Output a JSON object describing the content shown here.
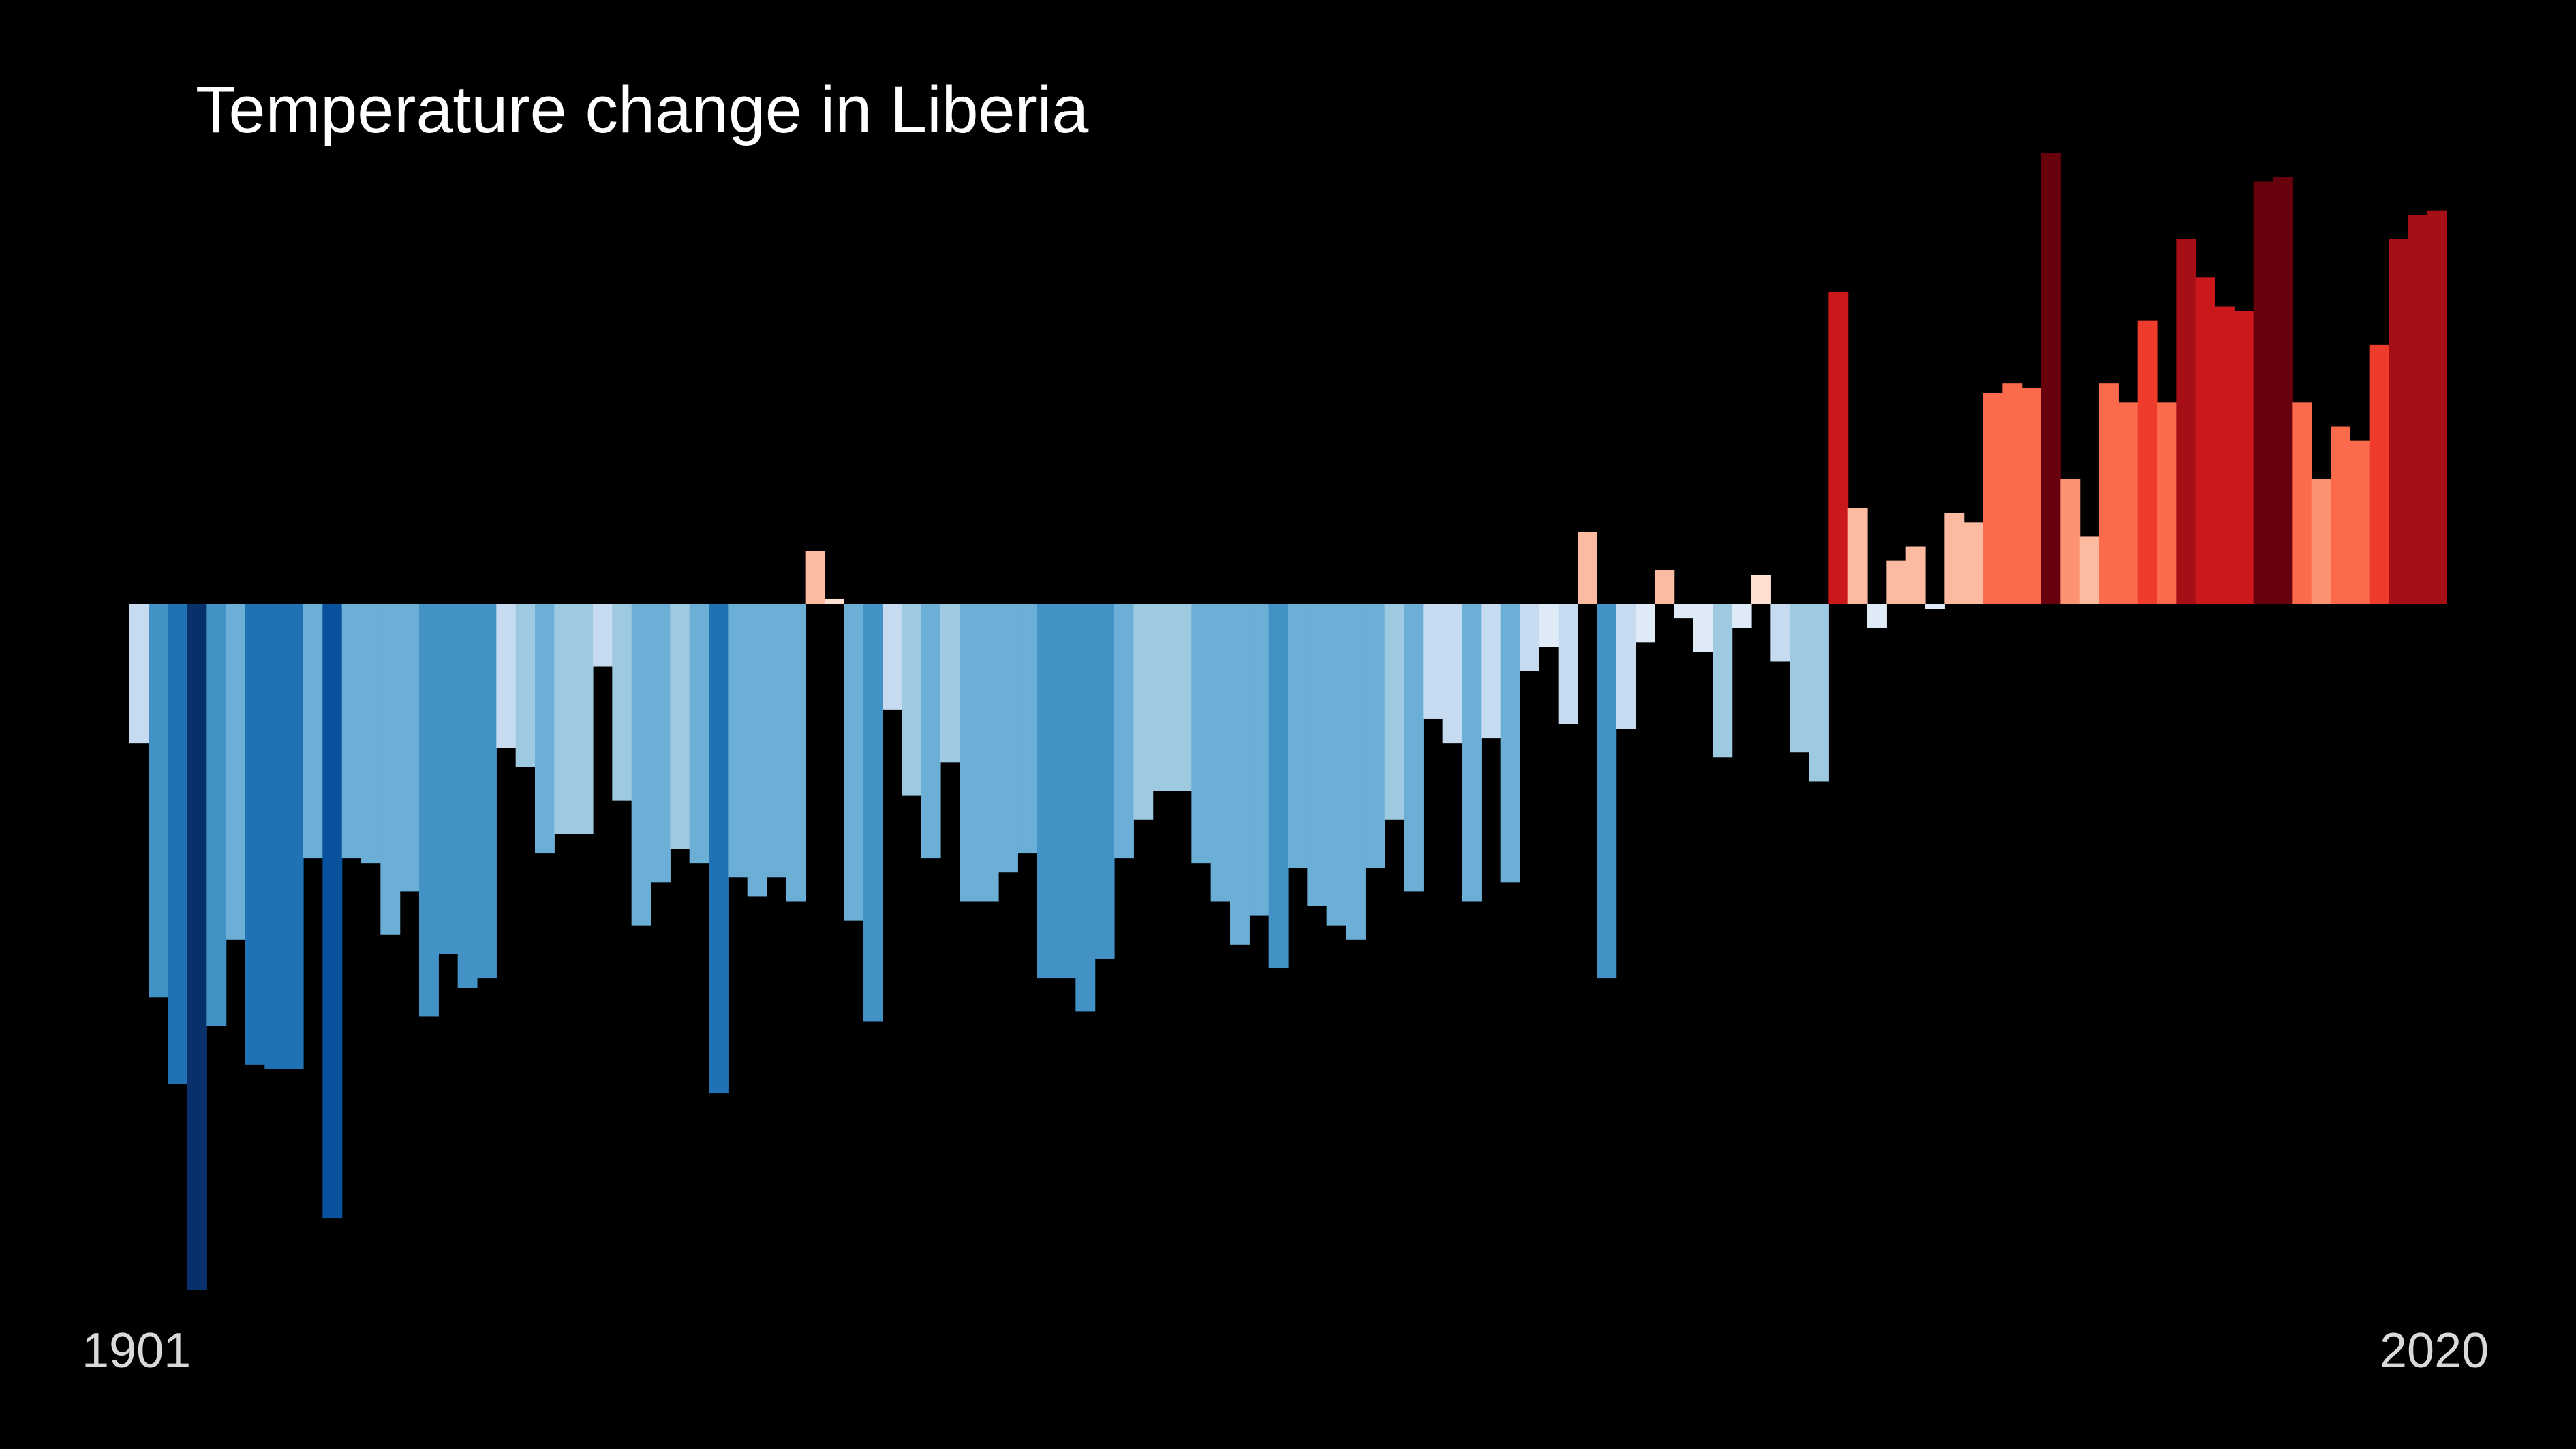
{
  "chart_data": {
    "type": "bar",
    "title": "Temperature change in Liberia",
    "xlabel": "",
    "ylabel": "",
    "x_start_label": "1901",
    "x_end_label": "2020",
    "x_range": [
      1901,
      2020
    ],
    "ylim": [
      -1.43,
      0.94
    ],
    "grid": false,
    "legend": "none",
    "background": "#000000",
    "color_scale": [
      "#08306b",
      "#08519c",
      "#2171b5",
      "#4292c6",
      "#6baed6",
      "#9ecae1",
      "#c6dbef",
      "#deebf7",
      "#fee0d2",
      "#fcbba1",
      "#fc9272",
      "#fb6a4a",
      "#ef3b2c",
      "#cb181d",
      "#a50f15",
      "#67000d"
    ],
    "categories": [
      1901,
      1902,
      1903,
      1904,
      1905,
      1906,
      1907,
      1908,
      1909,
      1910,
      1911,
      1912,
      1913,
      1914,
      1915,
      1916,
      1917,
      1918,
      1919,
      1920,
      1921,
      1922,
      1923,
      1924,
      1925,
      1926,
      1927,
      1928,
      1929,
      1930,
      1931,
      1932,
      1933,
      1934,
      1935,
      1936,
      1937,
      1938,
      1939,
      1940,
      1941,
      1942,
      1943,
      1944,
      1945,
      1946,
      1947,
      1948,
      1949,
      1950,
      1951,
      1952,
      1953,
      1954,
      1955,
      1956,
      1957,
      1958,
      1959,
      1960,
      1961,
      1962,
      1963,
      1964,
      1965,
      1966,
      1967,
      1968,
      1969,
      1970,
      1971,
      1972,
      1973,
      1974,
      1975,
      1976,
      1977,
      1978,
      1979,
      1980,
      1981,
      1982,
      1983,
      1984,
      1985,
      1986,
      1987,
      1988,
      1989,
      1990,
      1991,
      1992,
      1993,
      1994,
      1995,
      1996,
      1997,
      1998,
      1999,
      2000,
      2001,
      2002,
      2003,
      2004,
      2005,
      2006,
      2007,
      2008,
      2009,
      2010,
      2011,
      2012,
      2013,
      2014,
      2015,
      2016,
      2017,
      2018,
      2019,
      2020
    ],
    "values": [
      -0.29,
      -0.82,
      -1.0,
      -1.43,
      -0.88,
      -0.7,
      -0.96,
      -0.97,
      -0.97,
      -0.53,
      -1.28,
      -0.53,
      -0.54,
      -0.69,
      -0.6,
      -0.86,
      -0.73,
      -0.8,
      -0.78,
      -0.3,
      -0.34,
      -0.52,
      -0.48,
      -0.48,
      -0.13,
      -0.41,
      -0.67,
      -0.58,
      -0.51,
      -0.54,
      -1.02,
      -0.57,
      -0.61,
      -0.57,
      -0.62,
      0.11,
      0.01,
      -0.66,
      -0.87,
      -0.22,
      -0.4,
      -0.53,
      -0.33,
      -0.62,
      -0.62,
      -0.56,
      -0.52,
      -0.78,
      -0.78,
      -0.85,
      -0.74,
      -0.53,
      -0.45,
      -0.39,
      -0.39,
      -0.54,
      -0.62,
      -0.71,
      -0.65,
      -0.76,
      -0.55,
      -0.63,
      -0.67,
      -0.7,
      -0.55,
      -0.45,
      -0.6,
      -0.24,
      -0.29,
      -0.62,
      -0.28,
      -0.58,
      -0.14,
      -0.09,
      -0.25,
      0.15,
      -0.78,
      -0.26,
      -0.08,
      0.07,
      -0.03,
      -0.1,
      -0.32,
      -0.05,
      0.06,
      -0.12,
      -0.31,
      -0.37,
      0.65,
      0.2,
      -0.05,
      0.09,
      0.12,
      -0.01,
      0.19,
      0.17,
      0.44,
      0.46,
      0.45,
      0.94,
      0.26,
      0.14,
      0.46,
      0.42,
      0.59,
      0.42,
      0.76,
      0.68,
      0.62,
      0.61,
      0.88,
      0.89,
      0.42,
      0.26,
      0.37,
      0.34,
      0.54,
      0.76,
      0.81,
      0.82
    ]
  }
}
